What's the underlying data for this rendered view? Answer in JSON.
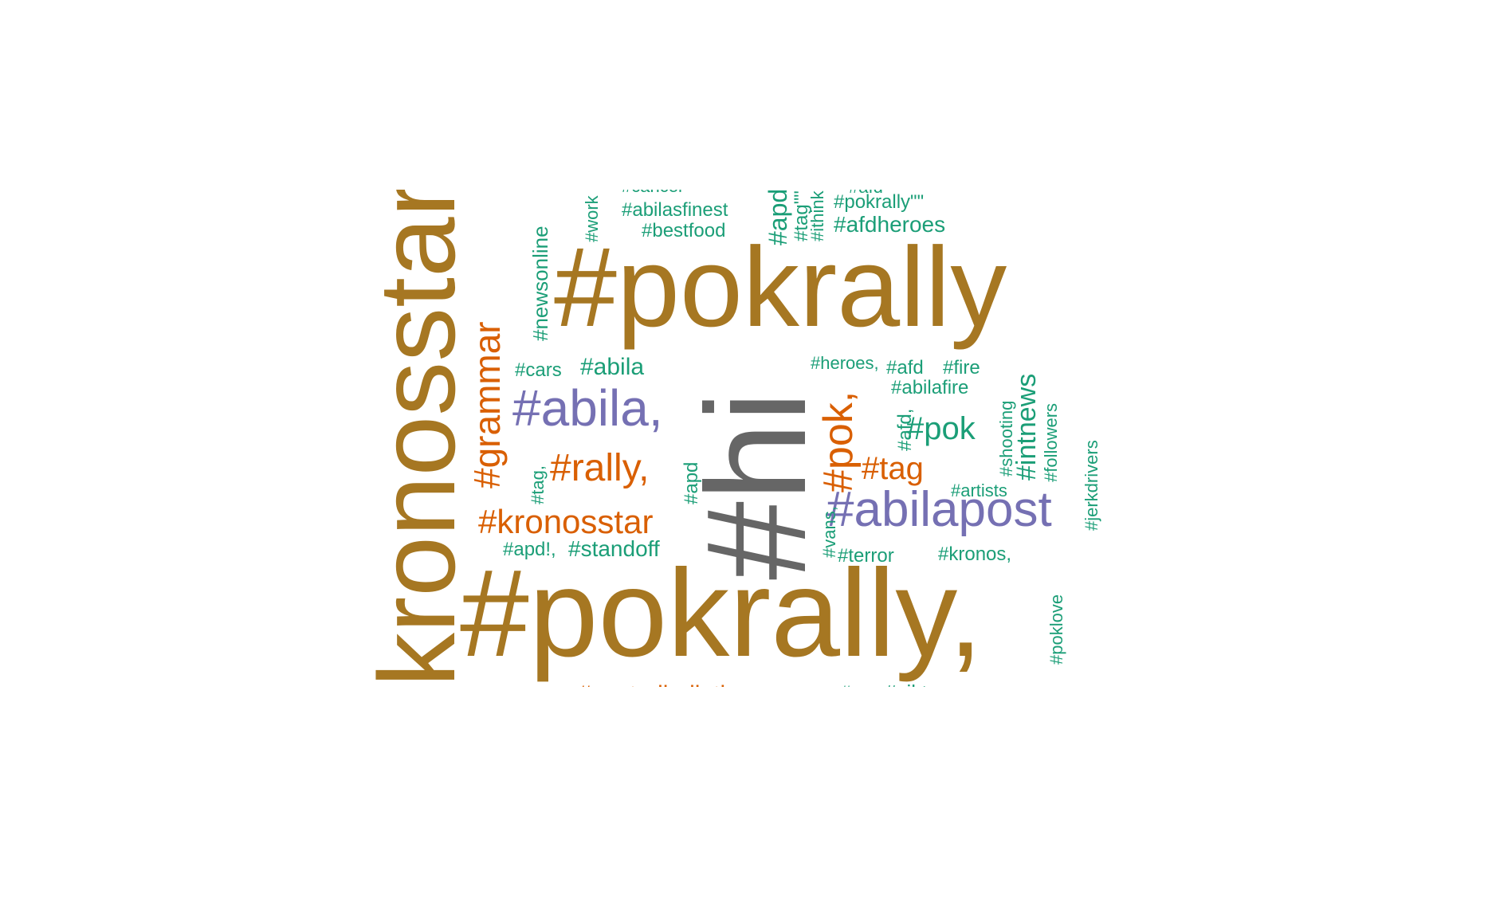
{
  "palette": {
    "gold": "#a67722",
    "gray": "#666666",
    "purple": "#7570b3",
    "orange": "#d95f02",
    "teal": "#1b9e77"
  },
  "words": [
    {
      "text": "kronosstar",
      "color": "gold"
    },
    {
      "text": "#pokrally",
      "color": "gold"
    },
    {
      "text": "#pokrally,",
      "color": "gold"
    },
    {
      "text": "#hi",
      "color": "gray"
    },
    {
      "text": "#abila,",
      "color": "purple"
    },
    {
      "text": "#abilapost",
      "color": "purple"
    },
    {
      "text": "#grammar",
      "color": "orange"
    },
    {
      "text": "#rally,",
      "color": "orange"
    },
    {
      "text": "#kronosstar",
      "color": "orange"
    },
    {
      "text": "#pok,",
      "color": "orange"
    },
    {
      "text": "#tag",
      "color": "orange"
    },
    {
      "text": "#centralbulletin",
      "color": "orange"
    },
    {
      "text": "#newsonline",
      "color": "teal"
    },
    {
      "text": "#work",
      "color": "teal"
    },
    {
      "text": "#cancer",
      "color": "teal"
    },
    {
      "text": "#abilasfinest",
      "color": "teal"
    },
    {
      "text": "#bestfood",
      "color": "teal"
    },
    {
      "text": "#apd",
      "color": "teal"
    },
    {
      "text": "#tag\"\"",
      "color": "teal"
    },
    {
      "text": "#ithinkitsfunny",
      "color": "teal"
    },
    {
      "text": "#afd",
      "color": "teal"
    },
    {
      "text": "#pokrally\"\"",
      "color": "teal"
    },
    {
      "text": "#afdheroes",
      "color": "teal"
    },
    {
      "text": "#cars",
      "color": "teal"
    },
    {
      "text": "#abila",
      "color": "teal"
    },
    {
      "text": "#heroes,",
      "color": "teal"
    },
    {
      "text": "#afd",
      "color": "teal"
    },
    {
      "text": "#fire",
      "color": "teal"
    },
    {
      "text": "#abilafire",
      "color": "teal"
    },
    {
      "text": "#afd,",
      "color": "teal"
    },
    {
      "text": "#pok",
      "color": "teal"
    },
    {
      "text": "#shooting",
      "color": "teal"
    },
    {
      "text": "#intnews",
      "color": "teal"
    },
    {
      "text": "#followers",
      "color": "teal"
    },
    {
      "text": "#jerkdrivers",
      "color": "teal"
    },
    {
      "text": "#tag,",
      "color": "teal"
    },
    {
      "text": "#apd",
      "color": "teal"
    },
    {
      "text": "#artists",
      "color": "teal"
    },
    {
      "text": "#vans,",
      "color": "teal"
    },
    {
      "text": "#apd!,",
      "color": "teal"
    },
    {
      "text": "#standoff",
      "color": "teal"
    },
    {
      "text": "#terror",
      "color": "teal"
    },
    {
      "text": "#kronos,",
      "color": "teal"
    },
    {
      "text": "#poklove",
      "color": "teal"
    },
    {
      "text": "#viktor-e",
      "color": "teal"
    },
    {
      "text": "#gs",
      "color": "teal"
    }
  ]
}
